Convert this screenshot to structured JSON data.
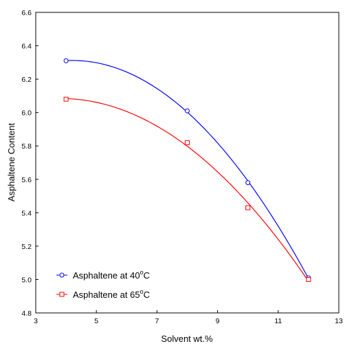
{
  "chart_data": {
    "type": "scatter",
    "xlabel": "Solvent wt.%",
    "ylabel": "Asphaltene Content",
    "xlim": [
      3,
      13
    ],
    "ylim": [
      4.8,
      6.6
    ],
    "xticks": [
      "3",
      "5",
      "7",
      "9",
      "11",
      "13"
    ],
    "yticks": [
      "4.8",
      "5.0",
      "5.2",
      "5.4",
      "5.6",
      "5.8",
      "6.0",
      "6.2",
      "6.4",
      "6.6"
    ],
    "grid": false,
    "legend_position": "bottom-left",
    "fitted_curves": true,
    "series": [
      {
        "name_prefix": "Asphaltene at 40",
        "name_superscript": "o",
        "name_suffix": "C",
        "marker": "circle",
        "color": "#0000ff",
        "x": [
          4,
          8,
          10,
          12
        ],
        "y": [
          6.31,
          6.01,
          5.58,
          5.01
        ]
      },
      {
        "name_prefix": "Asphaltene at 65",
        "name_superscript": "o",
        "name_suffix": "C",
        "marker": "square",
        "color": "#ff0000",
        "x": [
          4,
          8,
          10,
          12
        ],
        "y": [
          6.08,
          5.82,
          5.43,
          5.0
        ]
      }
    ]
  }
}
